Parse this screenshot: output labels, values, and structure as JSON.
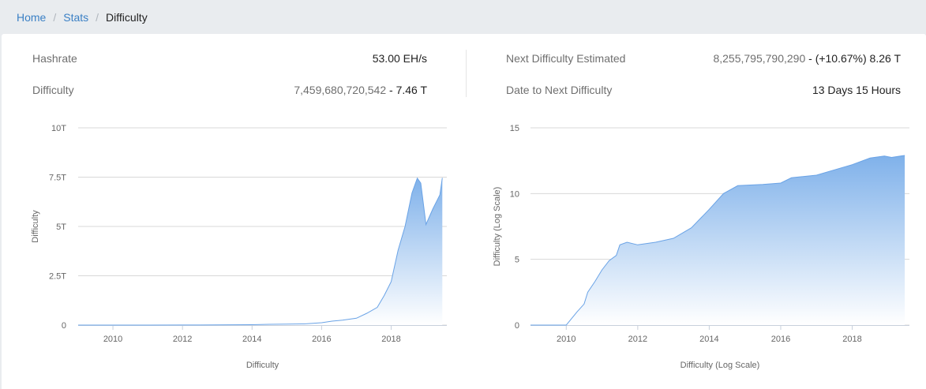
{
  "breadcrumb": {
    "home": "Home",
    "stats": "Stats",
    "current": "Difficulty"
  },
  "stats": {
    "hashrate_label": "Hashrate",
    "hashrate_value": "53.00 EH/s",
    "difficulty_label": "Difficulty",
    "difficulty_raw": "7,459,680,720,542",
    "difficulty_dash": " - ",
    "difficulty_short": "7.46 T",
    "next_label": "Next Difficulty Estimated",
    "next_raw": "8,255,795,790,290",
    "next_dash": " - ",
    "next_change": "(+10.67%) 8.26 T",
    "date_label": "Date to Next Difficulty",
    "date_value": "13 Days 15 Hours"
  },
  "colors": {
    "accent": "#3b80c5",
    "area_top": "#7fb1ea",
    "area_bottom": "#ffffff",
    "line": "#6aa3e6"
  },
  "chart_data": [
    {
      "type": "area",
      "title": "",
      "xlabel": "Difficulty",
      "ylabel": "Difficulty",
      "ylim": [
        0,
        10
      ],
      "y_unit": "T",
      "yticks": [
        "0",
        "2.5T",
        "5T",
        "7.5T",
        "10T"
      ],
      "ytick_values": [
        0,
        2.5,
        5,
        7.5,
        10
      ],
      "xticks": [
        "2010",
        "2012",
        "2014",
        "2016",
        "2018"
      ],
      "xlim": [
        2009.0,
        2019.6
      ],
      "grid": true,
      "x": [
        2009.0,
        2010.0,
        2011.0,
        2012.0,
        2013.0,
        2014.0,
        2014.5,
        2015.0,
        2015.5,
        2016.0,
        2016.3,
        2016.6,
        2017.0,
        2017.3,
        2017.6,
        2017.8,
        2018.0,
        2018.2,
        2018.4,
        2018.6,
        2018.75,
        2018.85,
        2019.0,
        2019.2,
        2019.4,
        2019.47
      ],
      "y": [
        0,
        0,
        0.001,
        0.002,
        0.01,
        0.02,
        0.04,
        0.05,
        0.06,
        0.12,
        0.2,
        0.25,
        0.35,
        0.6,
        0.9,
        1.5,
        2.2,
        3.8,
        5.0,
        6.7,
        7.45,
        7.2,
        5.1,
        5.9,
        6.6,
        7.46
      ]
    },
    {
      "type": "area",
      "title": "",
      "xlabel": "Difficulty (Log Scale)",
      "ylabel": "Difficulty (Log Scale)",
      "ylim": [
        0,
        15
      ],
      "yticks": [
        "0",
        "5",
        "10",
        "15"
      ],
      "ytick_values": [
        0,
        5,
        10,
        15
      ],
      "xticks": [
        "2010",
        "2012",
        "2014",
        "2016",
        "2018"
      ],
      "xlim": [
        2009.0,
        2019.6
      ],
      "grid": true,
      "x": [
        2009.0,
        2010.0,
        2010.3,
        2010.5,
        2010.6,
        2010.8,
        2011.0,
        2011.2,
        2011.4,
        2011.5,
        2011.7,
        2012.0,
        2012.5,
        2013.0,
        2013.5,
        2014.0,
        2014.4,
        2014.8,
        2015.5,
        2016.0,
        2016.3,
        2017.0,
        2017.5,
        2018.0,
        2018.5,
        2018.9,
        2019.1,
        2019.47
      ],
      "y": [
        0,
        0,
        1.0,
        1.6,
        2.5,
        3.3,
        4.2,
        4.9,
        5.3,
        6.1,
        6.3,
        6.1,
        6.3,
        6.6,
        7.4,
        8.8,
        10.0,
        10.6,
        10.7,
        10.8,
        11.2,
        11.4,
        11.8,
        12.2,
        12.7,
        12.85,
        12.75,
        12.9
      ]
    }
  ]
}
